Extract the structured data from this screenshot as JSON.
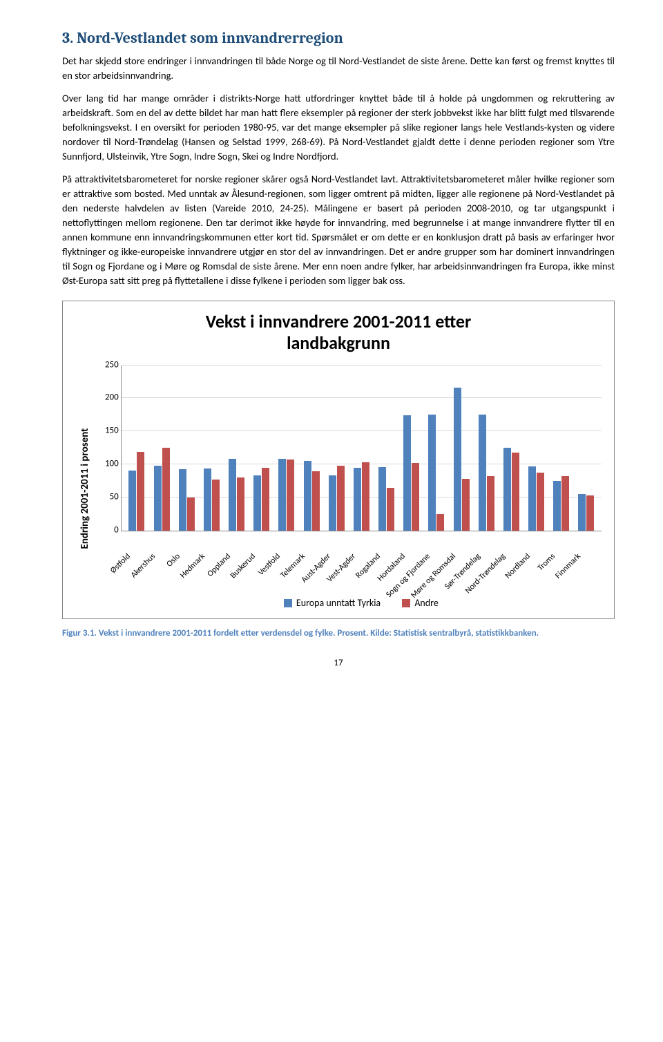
{
  "heading": "3. Nord-Vestlandet som innvandrerregion",
  "paragraphs": [
    "Det har skjedd store endringer i innvandringen til både Norge og til Nord-Vestlandet de siste årene. Dette kan først og fremst knyttes til en stor arbeidsinnvandring.",
    "Over lang tid har mange områder i distrikts-Norge hatt utfordringer knyttet både til å holde på ungdommen og rekruttering av arbeidskraft. Som en del av dette bildet har man hatt flere eksempler på regioner der sterk jobbvekst ikke har blitt fulgt med tilsvarende befolkningsvekst. I en oversikt for perioden 1980-95, var det mange eksempler på slike regioner langs hele Vestlands-kysten og videre nordover til Nord-Trøndelag (Hansen og Selstad 1999, 268-69). På Nord-Vestlandet gjaldt dette i denne perioden regioner som Ytre Sunnfjord, Ulsteinvik, Ytre Sogn, Indre Sogn, Skei og Indre Nordfjord.",
    "På attraktivitetsbarometeret for norske regioner skårer også Nord-Vestlandet lavt. Attraktivitetsbarometeret måler hvilke regioner som er attraktive som bosted. Med unntak av Ålesund-regionen, som ligger omtrent på midten, ligger alle regionene på Nord-Vestlandet på den nederste halvdelen av listen (Vareide 2010, 24-25). Målingene er basert på perioden 2008-2010, og tar utgangspunkt i nettoflyttingen mellom regionene. Den tar derimot ikke høyde for innvandring, med begrunnelse i at mange innvandrere flytter til en annen kommune enn innvandringskommunen etter kort tid. Spørsmålet er om dette er en konklusjon dratt på basis av erfaringer hvor flyktninger og ikke-europeiske innvandrere utgjør en stor del av innvandringen. Det er andre grupper som har dominert innvandringen til Sogn og Fjordane og i Møre og Romsdal de siste årene. Mer enn noen andre fylker, har arbeidsinnvandringen fra Europa, ikke minst Øst-Europa satt sitt preg på flyttetallene i disse fylkene i perioden som ligger bak oss."
  ],
  "chart": {
    "title_line1": "Vekst i innvandrere 2001-2011 etter",
    "title_line2": "landbakgrunn",
    "y_axis_label": "Endring 2001-2011 i prosent",
    "ylim": [
      0,
      250
    ],
    "ytick_step": 50,
    "colors": {
      "series1": "#4f81bd",
      "series2": "#c0504d",
      "grid": "#d9d9d9",
      "axis": "#888888",
      "bg": "#ffffff"
    },
    "categories": [
      "Østfold",
      "Akershus",
      "Oslo",
      "Hedmark",
      "Oppland",
      "Buskerud",
      "Vestfold",
      "Telemark",
      "Aust-Agder",
      "Vest-Agder",
      "Rogaland",
      "Hordaland",
      "Sogn og Fjordane",
      "Møre og Romsdal",
      "Sør-Trøndelag",
      "Nord-Trøndelag",
      "Nordland",
      "Troms",
      "Finnmark"
    ],
    "series": [
      {
        "name": "Europa unntatt Tyrkia",
        "values": [
          90,
          97,
          92,
          93,
          108,
          83,
          108,
          105,
          83,
          94,
          95,
          173,
          175,
          215,
          174,
          125,
          96,
          75,
          55
        ]
      },
      {
        "name": "Andre",
        "values": [
          118,
          125,
          49,
          77,
          80,
          94,
          107,
          89,
          97,
          103,
          64,
          102,
          25,
          78,
          82,
          117,
          87,
          82,
          53
        ]
      }
    ]
  },
  "figure_caption": "Figur 3.1. Vekst i innvandrere 2001-2011 fordelt etter verdensdel og fylke. Prosent. Kilde: Statistisk sentralbyrå, statistikkbanken.",
  "page_number": "17"
}
